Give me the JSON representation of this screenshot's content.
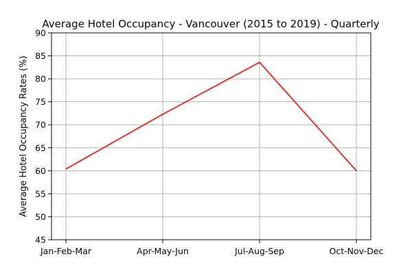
{
  "chart_data": {
    "type": "line",
    "title": "Average Hotel Occupancy - Vancouver (2015 to 2019) - Quarterly",
    "xlabel": "",
    "ylabel": "Average Hotel Occupancy Rates (%)",
    "categories": [
      "Jan-Feb-Mar",
      "Apr-May-Jun",
      "Jul-Aug-Sep",
      "Oct-Nov-Dec"
    ],
    "series": [
      {
        "values": [
          60.4,
          72.3,
          83.6,
          60.0
        ],
        "color": "#ff0000"
      }
    ],
    "ylim": [
      45,
      90
    ],
    "yticks": [
      45,
      50,
      55,
      60,
      65,
      70,
      75,
      80,
      85,
      90
    ],
    "grid": true,
    "legend": "none"
  }
}
